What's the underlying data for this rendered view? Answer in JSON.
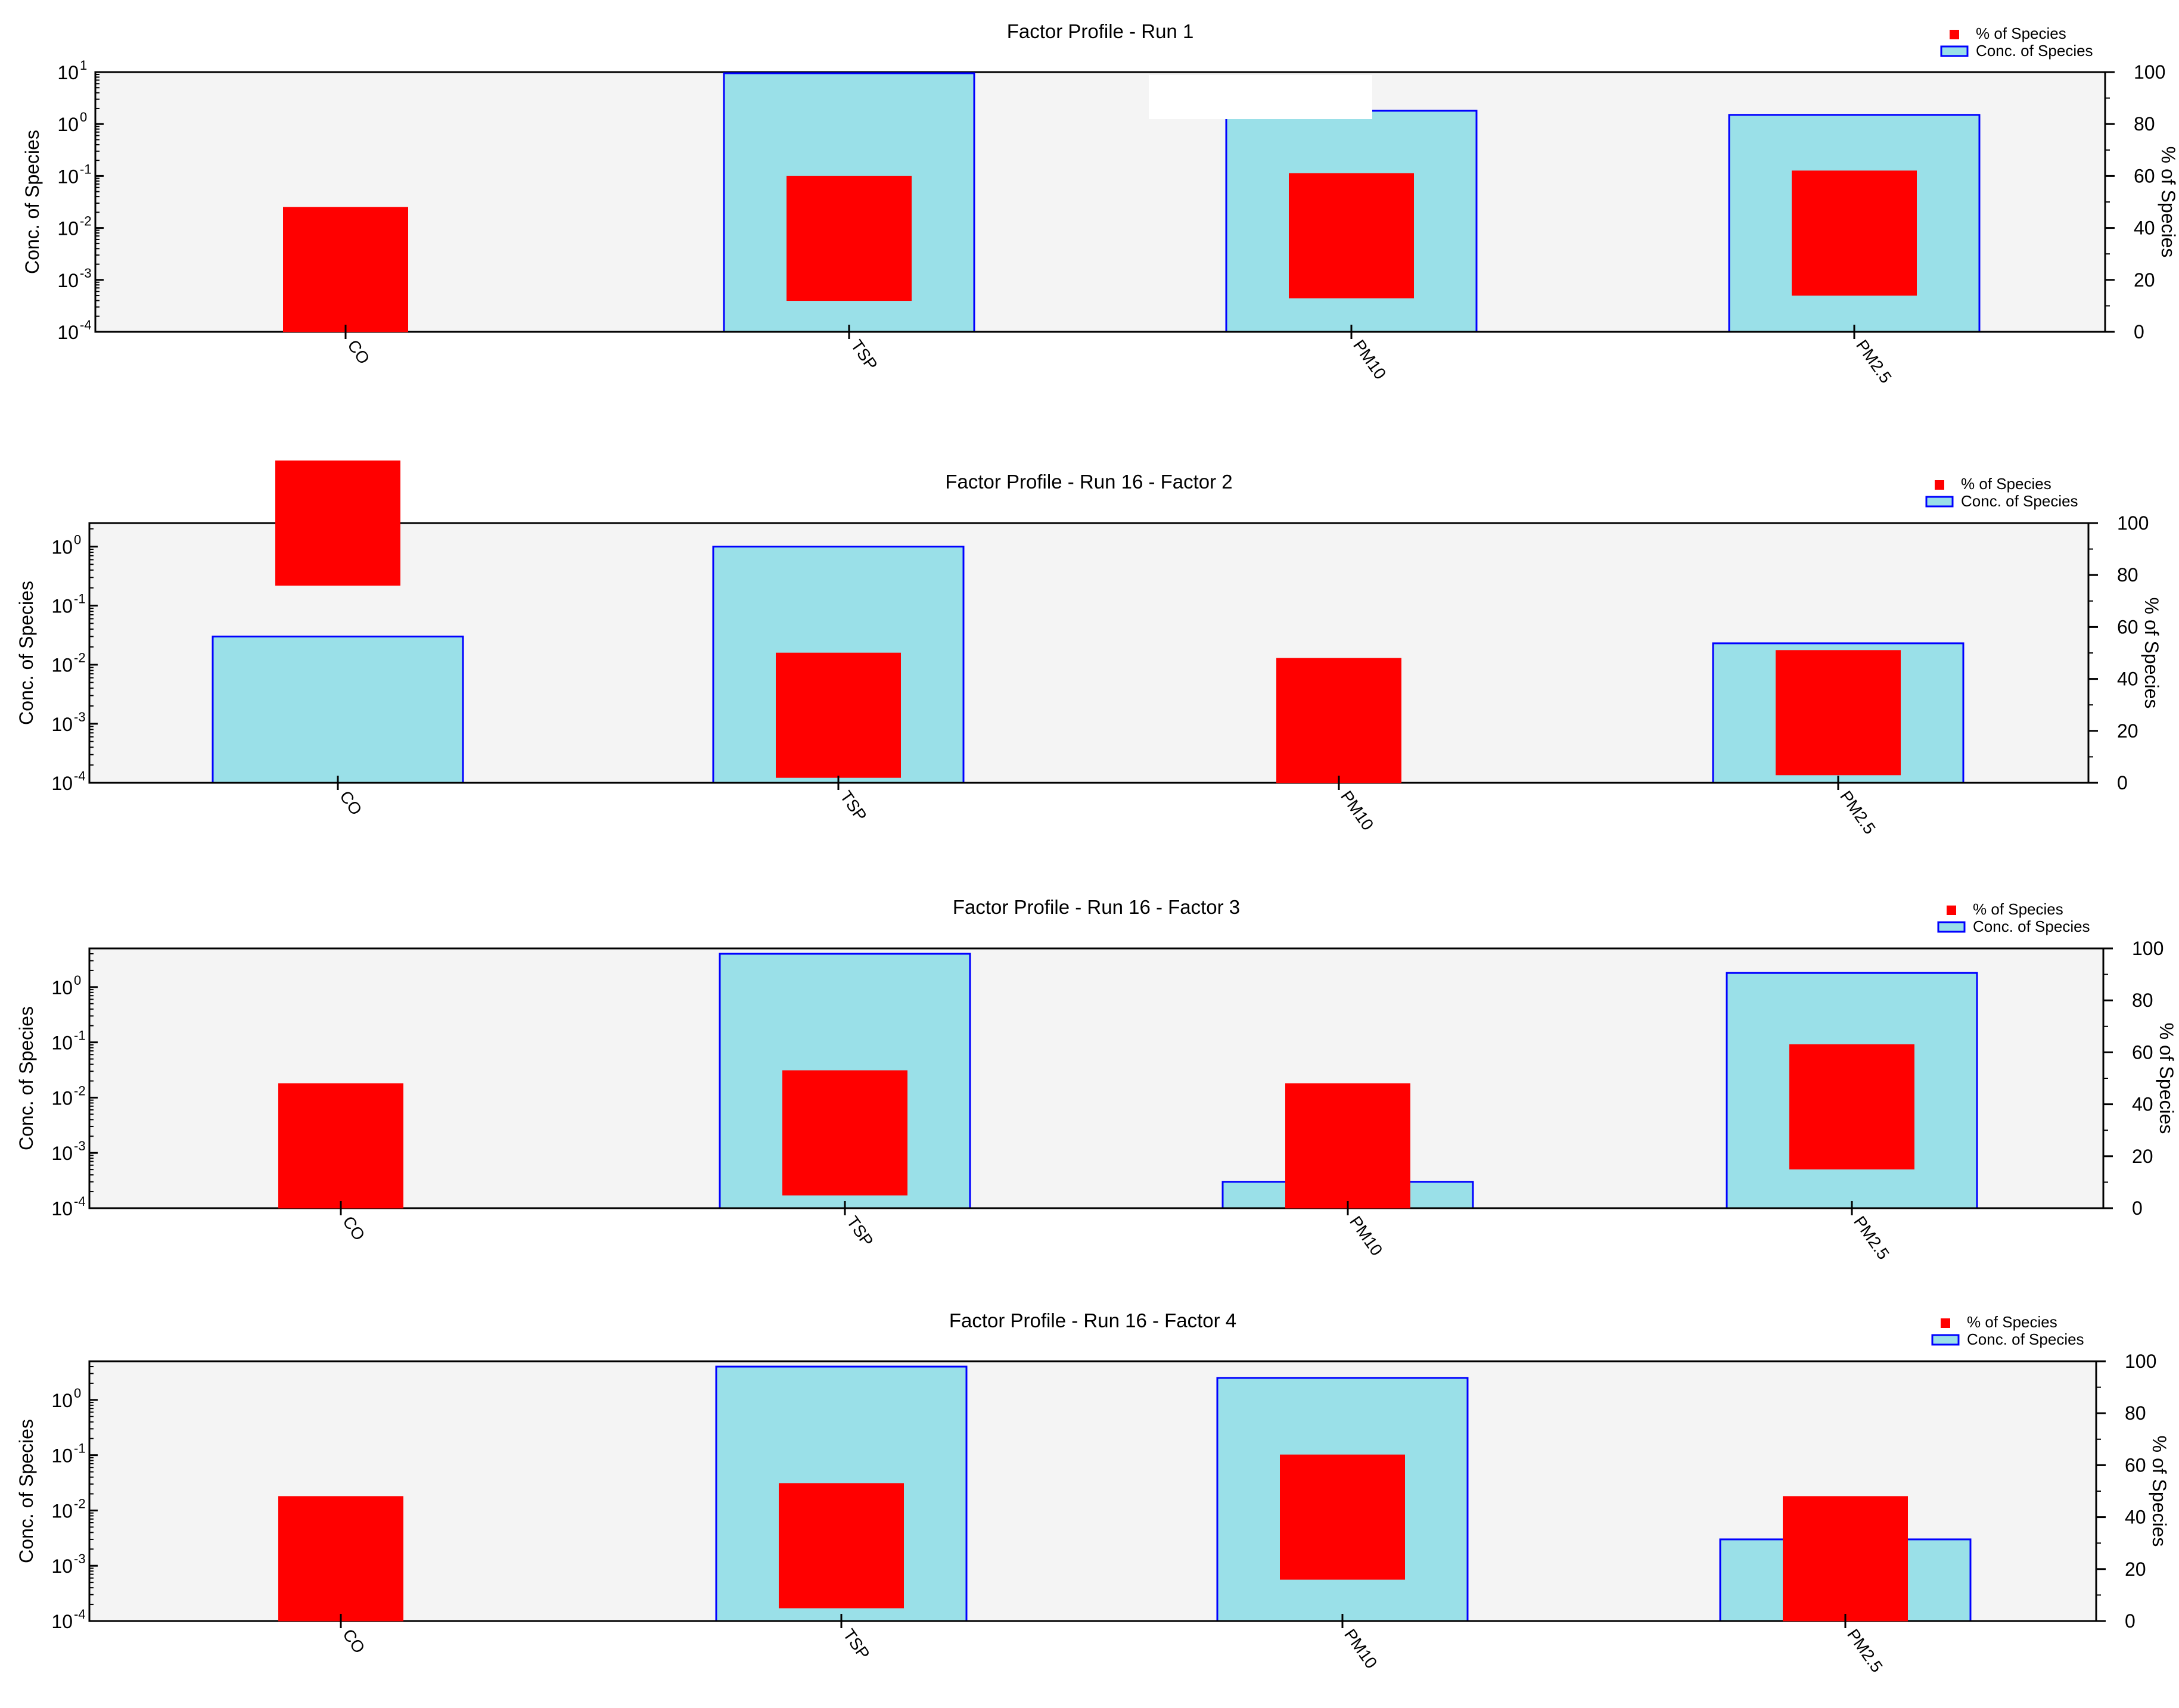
{
  "chart_data": [
    {
      "type": "bar",
      "title": "Factor Profile - Run 1",
      "categories": [
        "CO",
        "TSP",
        "PM10",
        "PM2.5"
      ],
      "ylabel": "Conc. of Species",
      "y2label": "% of Species",
      "yscale": "log",
      "ylim": [
        0.0001,
        10
      ],
      "y2lim": [
        0,
        100
      ],
      "legend_position": "top-right",
      "series": [
        {
          "name": "Conc. of Species",
          "axis": "left",
          "color": "#9ae0e8",
          "edge": "#0000ff",
          "values": [
            0.0001,
            9.5,
            1.8,
            1.5
          ]
        },
        {
          "name": "% of Species",
          "axis": "right",
          "color": "#ff0000",
          "values": [
            24,
            36,
            37,
            38
          ]
        }
      ],
      "yticks": [
        "10^1",
        "10^0",
        "10^-1",
        "10^-2",
        "10^-3",
        "10^-4"
      ],
      "y2ticks": [
        "100",
        "80",
        "60",
        "40",
        "20",
        "0"
      ]
    },
    {
      "type": "bar",
      "title": "Factor Profile - Run 16 - Factor 2",
      "categories": [
        "CO",
        "TSP",
        "PM10",
        "PM2.5"
      ],
      "ylabel": "Conc. of Species",
      "y2label": "% of Species",
      "yscale": "log",
      "ylim": [
        0.0001,
        2.5
      ],
      "y2lim": [
        0,
        100
      ],
      "legend_position": "top-right",
      "series": [
        {
          "name": "Conc. of Species",
          "axis": "left",
          "color": "#9ae0e8",
          "edge": "#0000ff",
          "values": [
            0.03,
            1.0,
            0.0001,
            0.023
          ]
        },
        {
          "name": "% of Species",
          "axis": "right",
          "color": "#ff0000",
          "values": [
            100,
            26,
            24,
            27
          ]
        }
      ],
      "yticks": [
        "10^0",
        "10^-1",
        "10^-2",
        "10^-3",
        "10^-4"
      ],
      "y2ticks": [
        "100",
        "80",
        "60",
        "40",
        "20",
        "0"
      ]
    },
    {
      "type": "bar",
      "title": "Factor Profile - Run 16 - Factor 3",
      "categories": [
        "CO",
        "TSP",
        "PM10",
        "PM2.5"
      ],
      "ylabel": "Conc. of Species",
      "y2label": "% of Species",
      "yscale": "log",
      "ylim": [
        0.0001,
        5
      ],
      "y2lim": [
        0,
        100
      ],
      "legend_position": "top-right",
      "series": [
        {
          "name": "Conc. of Species",
          "axis": "left",
          "color": "#9ae0e8",
          "edge": "#0000ff",
          "values": [
            0.0001,
            4.0,
            0.0003,
            1.8
          ]
        },
        {
          "name": "% of Species",
          "axis": "right",
          "color": "#ff0000",
          "values": [
            24,
            29,
            24,
            39
          ]
        }
      ],
      "yticks": [
        "10^0",
        "10^-1",
        "10^-2",
        "10^-3",
        "10^-4"
      ],
      "y2ticks": [
        "100",
        "80",
        "60",
        "40",
        "20",
        "0"
      ]
    },
    {
      "type": "bar",
      "title": "Factor Profile - Run 16 - Factor 4",
      "categories": [
        "CO",
        "TSP",
        "PM10",
        "PM2.5"
      ],
      "ylabel": "Conc. of Species",
      "y2label": "% of Species",
      "yscale": "log",
      "ylim": [
        0.0001,
        5
      ],
      "y2lim": [
        0,
        100
      ],
      "legend_position": "top-right",
      "series": [
        {
          "name": "Conc. of Species",
          "axis": "left",
          "color": "#9ae0e8",
          "edge": "#0000ff",
          "values": [
            0.0001,
            4.0,
            2.5,
            0.003
          ]
        },
        {
          "name": "% of Species",
          "axis": "right",
          "color": "#ff0000",
          "values": [
            24,
            29,
            40,
            24
          ]
        }
      ],
      "yticks": [
        "10^0",
        "10^-1",
        "10^-2",
        "10^-3",
        "10^-4"
      ],
      "y2ticks": [
        "100",
        "80",
        "60",
        "40",
        "20",
        "0"
      ]
    }
  ]
}
